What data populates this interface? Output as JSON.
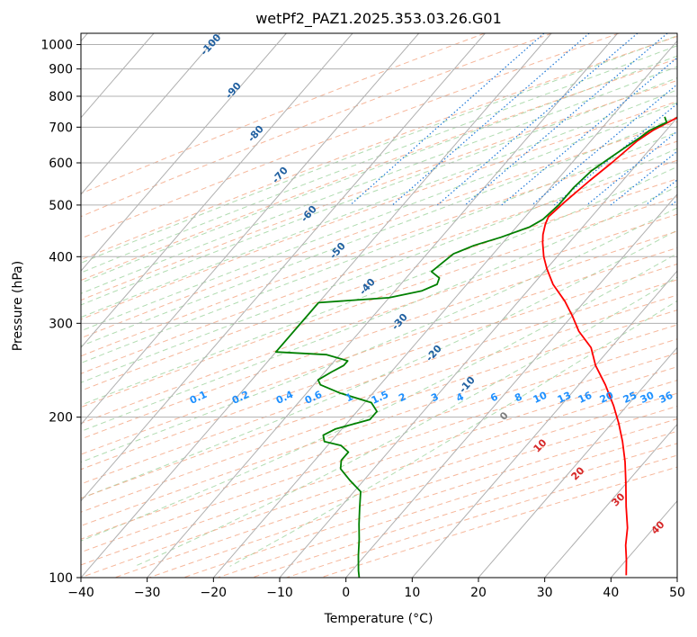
{
  "chart_data": {
    "type": "line",
    "title": "wetPf2_PAZ1.2025.353.03.26.G01",
    "xlabel": "Temperature (°C)",
    "ylabel": "Pressure (hPa)",
    "xlim": [
      -40,
      50
    ],
    "ylim": [
      1050,
      100
    ],
    "y_scale": "log",
    "grid": true,
    "x_ticks": [
      -40,
      -30,
      -20,
      -10,
      0,
      10,
      20,
      30,
      40,
      50
    ],
    "y_ticks": [
      100,
      200,
      300,
      400,
      500,
      600,
      700,
      800,
      900,
      1000
    ],
    "series": [
      {
        "color": "#ff0000",
        "points": [
          {
            "T": -10,
            "p": 730
          },
          {
            "T": -11,
            "p": 710
          },
          {
            "T": -12,
            "p": 690
          },
          {
            "T": -13,
            "p": 660
          },
          {
            "T": -14,
            "p": 600
          },
          {
            "T": -15,
            "p": 555
          },
          {
            "T": -16,
            "p": 505
          },
          {
            "T": -16.5,
            "p": 475
          },
          {
            "T": -16,
            "p": 460
          },
          {
            "T": -15,
            "p": 440
          },
          {
            "T": -14,
            "p": 425
          },
          {
            "T": -12,
            "p": 400
          },
          {
            "T": -10,
            "p": 380
          },
          {
            "T": -7,
            "p": 355
          },
          {
            "T": -3,
            "p": 330
          },
          {
            "T": 0,
            "p": 310
          },
          {
            "T": 3,
            "p": 290
          },
          {
            "T": 7,
            "p": 270
          },
          {
            "T": 10,
            "p": 250
          },
          {
            "T": 14,
            "p": 230
          },
          {
            "T": 18,
            "p": 210
          },
          {
            "T": 21,
            "p": 195
          },
          {
            "T": 24,
            "p": 180
          },
          {
            "T": 27,
            "p": 165
          },
          {
            "T": 30,
            "p": 150
          },
          {
            "T": 33,
            "p": 136
          },
          {
            "T": 36,
            "p": 124
          },
          {
            "T": 38,
            "p": 115
          },
          {
            "T": 40,
            "p": 108
          },
          {
            "T": 42,
            "p": 101
          }
        ]
      },
      {
        "color": "#008000",
        "points": [
          {
            "T": -12,
            "p": 732
          },
          {
            "T": -11,
            "p": 715
          },
          {
            "T": -12.5,
            "p": 690
          },
          {
            "T": -13,
            "p": 670
          },
          {
            "T": -14,
            "p": 640
          },
          {
            "T": -15,
            "p": 610
          },
          {
            "T": -16,
            "p": 580
          },
          {
            "T": -16.5,
            "p": 540
          },
          {
            "T": -16.5,
            "p": 500
          },
          {
            "T": -17,
            "p": 470
          },
          {
            "T": -18,
            "p": 455
          },
          {
            "T": -21,
            "p": 435
          },
          {
            "T": -24,
            "p": 420
          },
          {
            "T": -26,
            "p": 405
          },
          {
            "T": -26.5,
            "p": 390
          },
          {
            "T": -27,
            "p": 375
          },
          {
            "T": -25,
            "p": 365
          },
          {
            "T": -24.5,
            "p": 355
          },
          {
            "T": -26,
            "p": 345
          },
          {
            "T": -30,
            "p": 335
          },
          {
            "T": -40,
            "p": 328
          },
          {
            "T": -40,
            "p": 265
          },
          {
            "T": -32,
            "p": 262
          },
          {
            "T": -28,
            "p": 255
          },
          {
            "T": -28,
            "p": 250
          },
          {
            "T": -29,
            "p": 243
          },
          {
            "T": -30,
            "p": 235
          },
          {
            "T": -29,
            "p": 230
          },
          {
            "T": -25,
            "p": 222
          },
          {
            "T": -19,
            "p": 213
          },
          {
            "T": -17,
            "p": 205
          },
          {
            "T": -17,
            "p": 198
          },
          {
            "T": -18.5,
            "p": 195
          },
          {
            "T": -21,
            "p": 190
          },
          {
            "T": -22,
            "p": 185
          },
          {
            "T": -21,
            "p": 180
          },
          {
            "T": -18,
            "p": 177
          },
          {
            "T": -16,
            "p": 172
          },
          {
            "T": -16,
            "p": 166
          },
          {
            "T": -15,
            "p": 160
          },
          {
            "T": -12,
            "p": 152
          },
          {
            "T": -9,
            "p": 145
          },
          {
            "T": -7,
            "p": 135
          },
          {
            "T": -5,
            "p": 126
          },
          {
            "T": -3,
            "p": 118
          },
          {
            "T": -1,
            "p": 110
          },
          {
            "T": 1,
            "p": 103
          },
          {
            "T": 2,
            "p": 100
          }
        ]
      }
    ],
    "dry_adiabats": [
      -100,
      -90,
      -80,
      -70,
      -60,
      -50,
      -40,
      -30,
      -20,
      -10
    ],
    "mixing_ratio_lines": [
      "0.1",
      "0.2",
      "0.4",
      "0.6",
      "1",
      "1.5",
      "2",
      "3",
      "4",
      "6",
      "8",
      "10",
      "13",
      "16",
      "20",
      "25",
      "30",
      "36"
    ],
    "moist_adiabats": [
      0,
      10,
      20,
      30,
      40
    ],
    "colors": {
      "temperature": "#ff0000",
      "dewpoint": "#008000",
      "isotherm_grid": "#b0b0b0",
      "dry_adiabat": "#f4a582",
      "moist_adiabat": "#9dd39d",
      "mixing_ratio": "#1e78d8",
      "dry_label": "#1f5fa0",
      "mix_label": "#1e90ff",
      "moist_label": "#d62728"
    }
  }
}
